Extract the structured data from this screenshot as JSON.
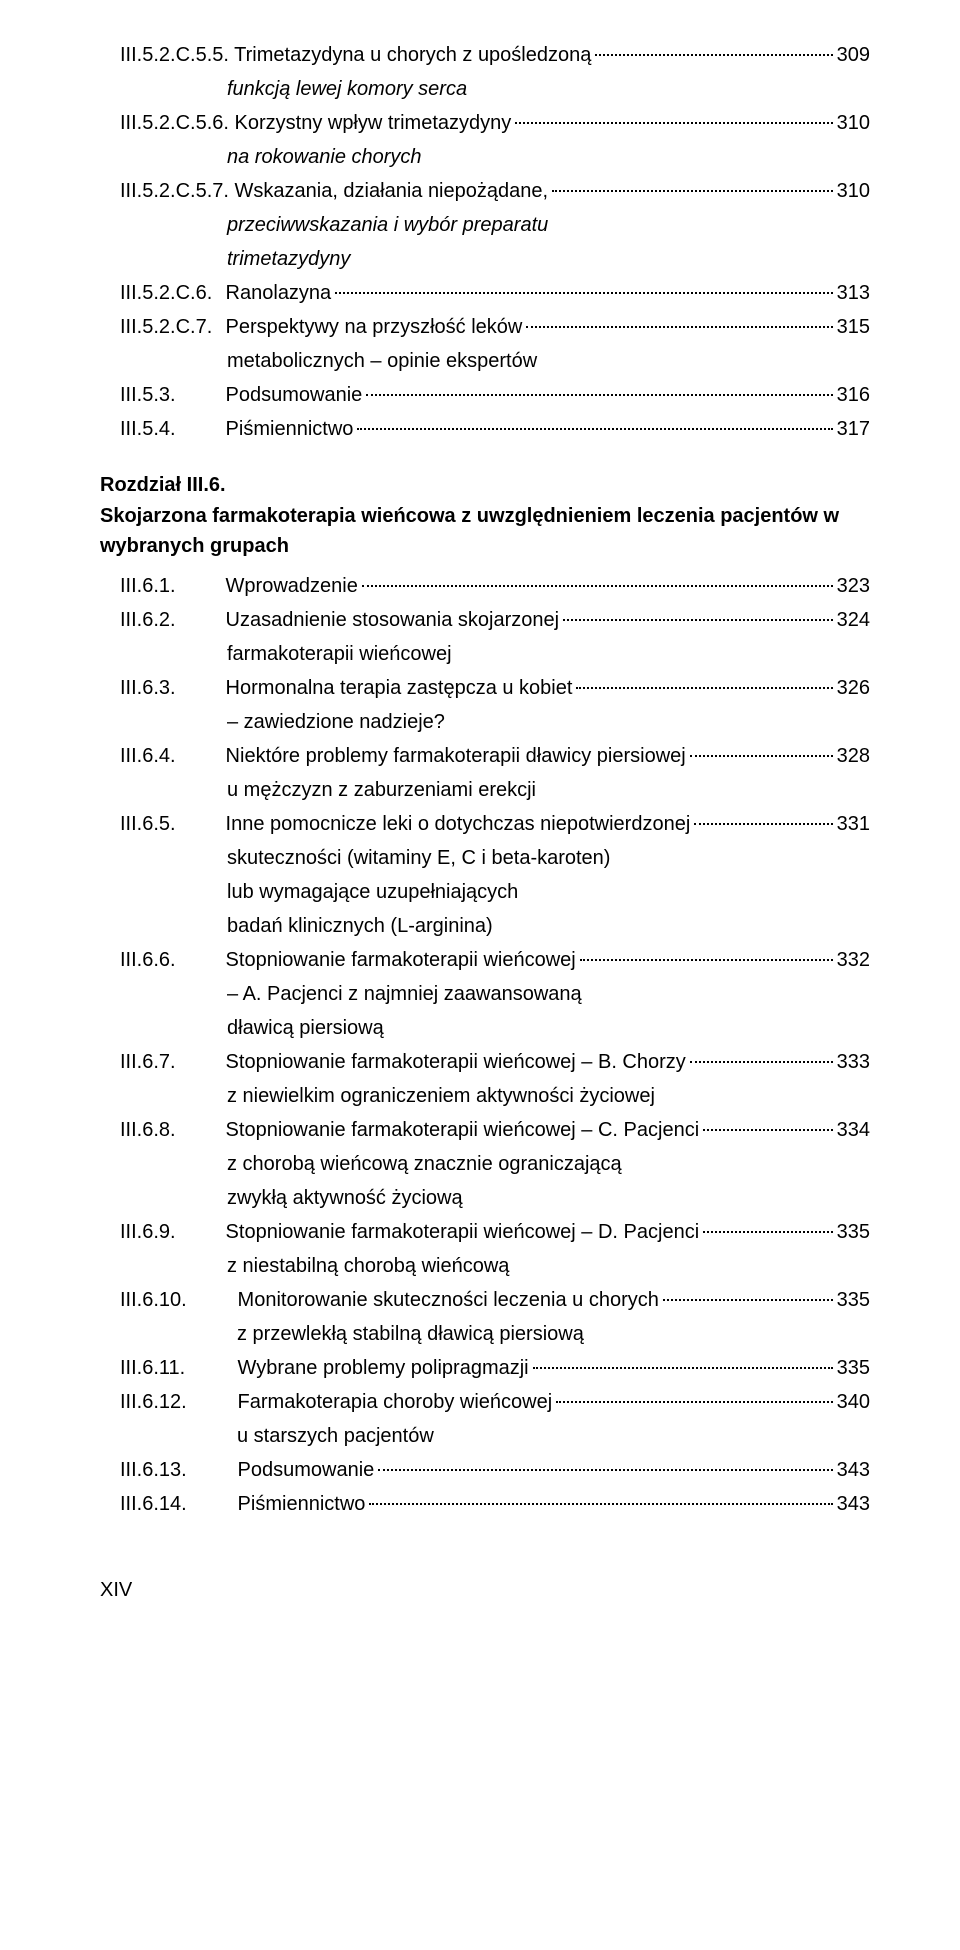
{
  "entries": [
    {
      "num": "III.5.2.C.5.5.",
      "title": "Trimetazydyna u chorych z upośledzoną",
      "page": "309",
      "cont": "funkcją lewej komory serca",
      "italic": true
    },
    {
      "num": "III.5.2.C.5.6.",
      "title": "Korzystny wpływ trimetazydyny",
      "page": "310",
      "cont": "na rokowanie chorych",
      "italic": true
    },
    {
      "num": "III.5.2.C.5.7.",
      "title": "Wskazania, działania niepożądane,",
      "page": "310",
      "cont": "przeciwwskazania i wybór preparatu",
      "cont2": "trimetazydyny",
      "italic": true
    },
    {
      "num": "III.5.2.C.6.",
      "title": "Ranolazyna",
      "page": "313"
    },
    {
      "num": "III.5.2.C.7.",
      "title": "Perspektywy na przyszłość leków",
      "page": "315",
      "cont": "metabolicznych – opinie ekspertów"
    },
    {
      "num": "III.5.3.",
      "title": "Podsumowanie",
      "page": "316"
    },
    {
      "num": "III.5.4.",
      "title": "Piśmiennictwo",
      "page": "317"
    }
  ],
  "section": {
    "heading": "Rozdział III.6.",
    "subheading": "Skojarzona farmakoterapia wieńcowa z uwzględnieniem leczenia pacjentów w wybranych grupach"
  },
  "entries2": [
    {
      "num": "III.6.1.",
      "title": "Wprowadzenie",
      "page": "323"
    },
    {
      "num": "III.6.2.",
      "title": "Uzasadnienie stosowania skojarzonej",
      "page": "324",
      "cont": "farmakoterapii wieńcowej"
    },
    {
      "num": "III.6.3.",
      "title": "Hormonalna terapia zastępcza u kobiet",
      "page": "326",
      "cont": "– zawiedzione nadzieje?"
    },
    {
      "num": "III.6.4.",
      "title": "Niektóre problemy farmakoterapii dławicy piersiowej",
      "page": "328",
      "cont": "u mężczyzn z zaburzeniami erekcji"
    },
    {
      "num": "III.6.5.",
      "title": "Inne pomocnicze leki o dotychczas niepotwierdzonej",
      "page": "331",
      "cont": "skuteczności (witaminy E, C i beta-karoten)",
      "cont2": "lub wymagające uzupełniających",
      "cont3": "badań klinicznych (L-arginina)"
    },
    {
      "num": "III.6.6.",
      "title": "Stopniowanie farmakoterapii wieńcowej",
      "page": "332",
      "cont": "– A. Pacjenci z najmniej zaawansowaną",
      "cont2": "dławicą piersiową"
    },
    {
      "num": "III.6.7.",
      "title": "Stopniowanie farmakoterapii wieńcowej – B. Chorzy",
      "page": "333",
      "cont": "z niewielkim ograniczeniem aktywności życiowej"
    },
    {
      "num": "III.6.8.",
      "title": "Stopniowanie farmakoterapii wieńcowej – C. Pacjenci",
      "page": "334",
      "cont": "z chorobą wieńcową znacznie ograniczającą",
      "cont2": "zwykłą aktywność życiową"
    },
    {
      "num": "III.6.9.",
      "title": "Stopniowanie farmakoterapii wieńcowej – D. Pacjenci",
      "page": "335",
      "cont": "z niestabilną chorobą wieńcową"
    },
    {
      "num": "III.6.10.",
      "title": "Monitorowanie skuteczności leczenia u chorych",
      "page": "335",
      "cont": "z przewlekłą stabilną dławicą piersiową",
      "wide": true
    },
    {
      "num": "III.6.11.",
      "title": "Wybrane problemy polipragmazji",
      "page": "335",
      "wide": true
    },
    {
      "num": "III.6.12.",
      "title": "Farmakoterapia choroby wieńcowej",
      "page": "340",
      "cont": "u starszych pacjentów",
      "wide": true
    },
    {
      "num": "III.6.13.",
      "title": "Podsumowanie",
      "page": "343",
      "wide": true
    },
    {
      "num": "III.6.14.",
      "title": "Piśmiennictwo",
      "page": "343",
      "wide": true
    }
  ],
  "footer": "XIV"
}
